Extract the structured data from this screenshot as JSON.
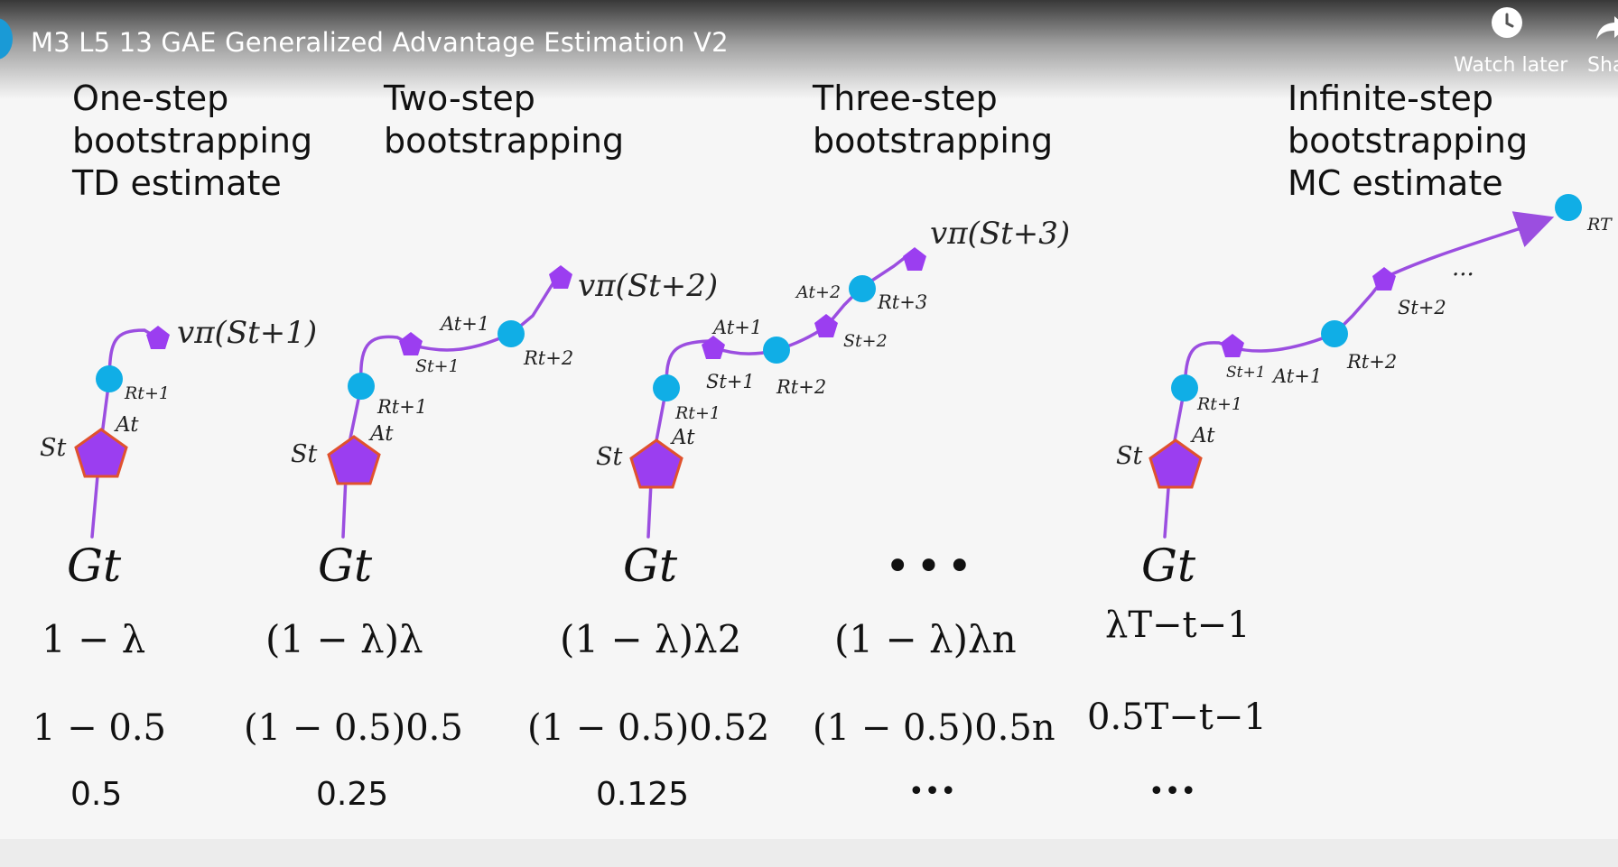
{
  "player": {
    "title": "M3 L5 13 GAE Generalized Advantage Estimation V2",
    "watch_later_label": "Watch later",
    "share_label": "Sha",
    "watch_later_icon": "clock-icon",
    "colors": {
      "accent": "#1a9ad6"
    }
  },
  "columns": [
    {
      "heading": [
        "One-step",
        "bootstrapping",
        "TD estimate"
      ],
      "return": "Gt",
      "weight": "1 − λ",
      "weight_example": "1 − 0.5",
      "value": "0.5"
    },
    {
      "heading": [
        "Two-step",
        "bootstrapping"
      ],
      "return": "Gt",
      "weight": "(1 − λ)λ",
      "weight_example": "(1 − 0.5)0.5",
      "value": "0.25"
    },
    {
      "heading": [
        "Three-step",
        "bootstrapping"
      ],
      "return": "Gt",
      "weight": "(1 − λ)λ2",
      "weight_example": "(1 − 0.5)0.52",
      "value": "0.125"
    },
    {
      "heading": [],
      "return": "•••",
      "weight": "(1 − λ)λn",
      "weight_example": "(1 − 0.5)0.5n",
      "value": "•••"
    },
    {
      "heading": [
        "Infinite-step",
        "bootstrapping",
        "MC estimate"
      ],
      "return": "Gt",
      "weight": "λT−t−1",
      "weight_example": "0.5T−t−1",
      "value": "•••"
    }
  ],
  "diagram_labels": {
    "one": {
      "v": "vπ(St+1)",
      "r1": "Rt+1",
      "a": "At",
      "s": "St"
    },
    "two": {
      "v": "vπ(St+2)",
      "a1": "At+1",
      "s1": "St+1",
      "r2": "Rt+2",
      "r1": "Rt+1",
      "a": "At",
      "s": "St"
    },
    "three": {
      "v": "vπ(St+3)",
      "a2": "At+2",
      "r3": "Rt+3",
      "s2": "St+2",
      "a1": "At+1",
      "s1": "St+1",
      "r2": "Rt+2",
      "r1": "Rt+1",
      "a": "At",
      "s": "St"
    },
    "inf": {
      "rt": "RT",
      "dots": "...",
      "s2": "St+2",
      "r2": "Rt+2",
      "s1": "St+1",
      "a1": "At+1",
      "r1": "Rt+1",
      "a": "At",
      "s": "St"
    }
  },
  "diagram_colors": {
    "state": "#9b3ef0",
    "state_border": "#e0522e",
    "reward": "#10aee6",
    "edge": "#9b4ee0"
  }
}
